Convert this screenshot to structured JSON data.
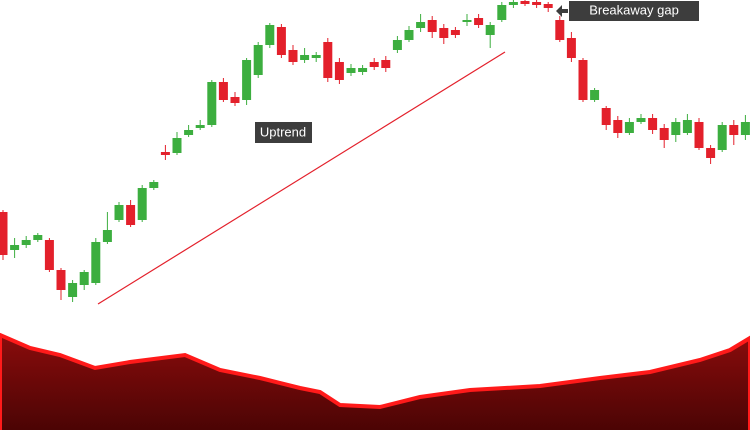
{
  "chart_data": {
    "type": "candlestick",
    "open": [
      98,
      60,
      65,
      70,
      70,
      40,
      13,
      25,
      27,
      68,
      90,
      105,
      90,
      122,
      158,
      157,
      175,
      182,
      185,
      228,
      213,
      210,
      235,
      265,
      283,
      260,
      250,
      252,
      268,
      248,
      237,
      238,
      248,
      250,
      260,
      270,
      282,
      290,
      282,
      280,
      288,
      292,
      275,
      290,
      305,
      309,
      308,
      306,
      290,
      272,
      250,
      210,
      202,
      190,
      177,
      188,
      192,
      182,
      175,
      177,
      188,
      162,
      160,
      185,
      175
    ],
    "high": [
      100,
      72,
      74,
      77,
      72,
      42,
      30,
      40,
      72,
      98,
      108,
      110,
      125,
      130,
      165,
      178,
      185,
      190,
      230,
      232,
      218,
      252,
      268,
      287,
      286,
      265,
      262,
      258,
      272,
      252,
      246,
      245,
      252,
      254,
      274,
      284,
      296,
      294,
      286,
      283,
      296,
      296,
      288,
      308,
      310,
      310,
      310,
      308,
      294,
      278,
      252,
      222,
      204,
      194,
      192,
      196,
      196,
      186,
      192,
      196,
      192,
      165,
      188,
      190,
      195
    ],
    "low": [
      50,
      52,
      62,
      68,
      38,
      10,
      8,
      20,
      25,
      66,
      88,
      83,
      88,
      120,
      150,
      155,
      173,
      180,
      183,
      208,
      204,
      205,
      232,
      262,
      252,
      245,
      247,
      248,
      228,
      226,
      234,
      235,
      240,
      238,
      257,
      268,
      278,
      272,
      266,
      272,
      284,
      282,
      262,
      288,
      302,
      304,
      302,
      298,
      268,
      248,
      208,
      208,
      180,
      172,
      175,
      186,
      176,
      162,
      168,
      175,
      160,
      146,
      158,
      165,
      170
    ],
    "close": [
      55,
      65,
      70,
      75,
      40,
      20,
      27,
      38,
      68,
      80,
      105,
      85,
      122,
      128,
      155,
      172,
      180,
      185,
      228,
      210,
      207,
      250,
      265,
      285,
      255,
      248,
      255,
      255,
      232,
      230,
      242,
      242,
      243,
      242,
      270,
      280,
      288,
      278,
      272,
      275,
      290,
      285,
      285,
      305,
      308,
      306,
      305,
      302,
      270,
      252,
      210,
      220,
      185,
      177,
      188,
      192,
      180,
      170,
      188,
      190,
      162,
      152,
      185,
      175,
      188
    ],
    "up_color": "#3cae3f",
    "down_color": "#e3202b",
    "ylim": [
      0,
      310
    ],
    "annotations": [
      "Uptrend",
      "Breakaway gap"
    ]
  }
}
